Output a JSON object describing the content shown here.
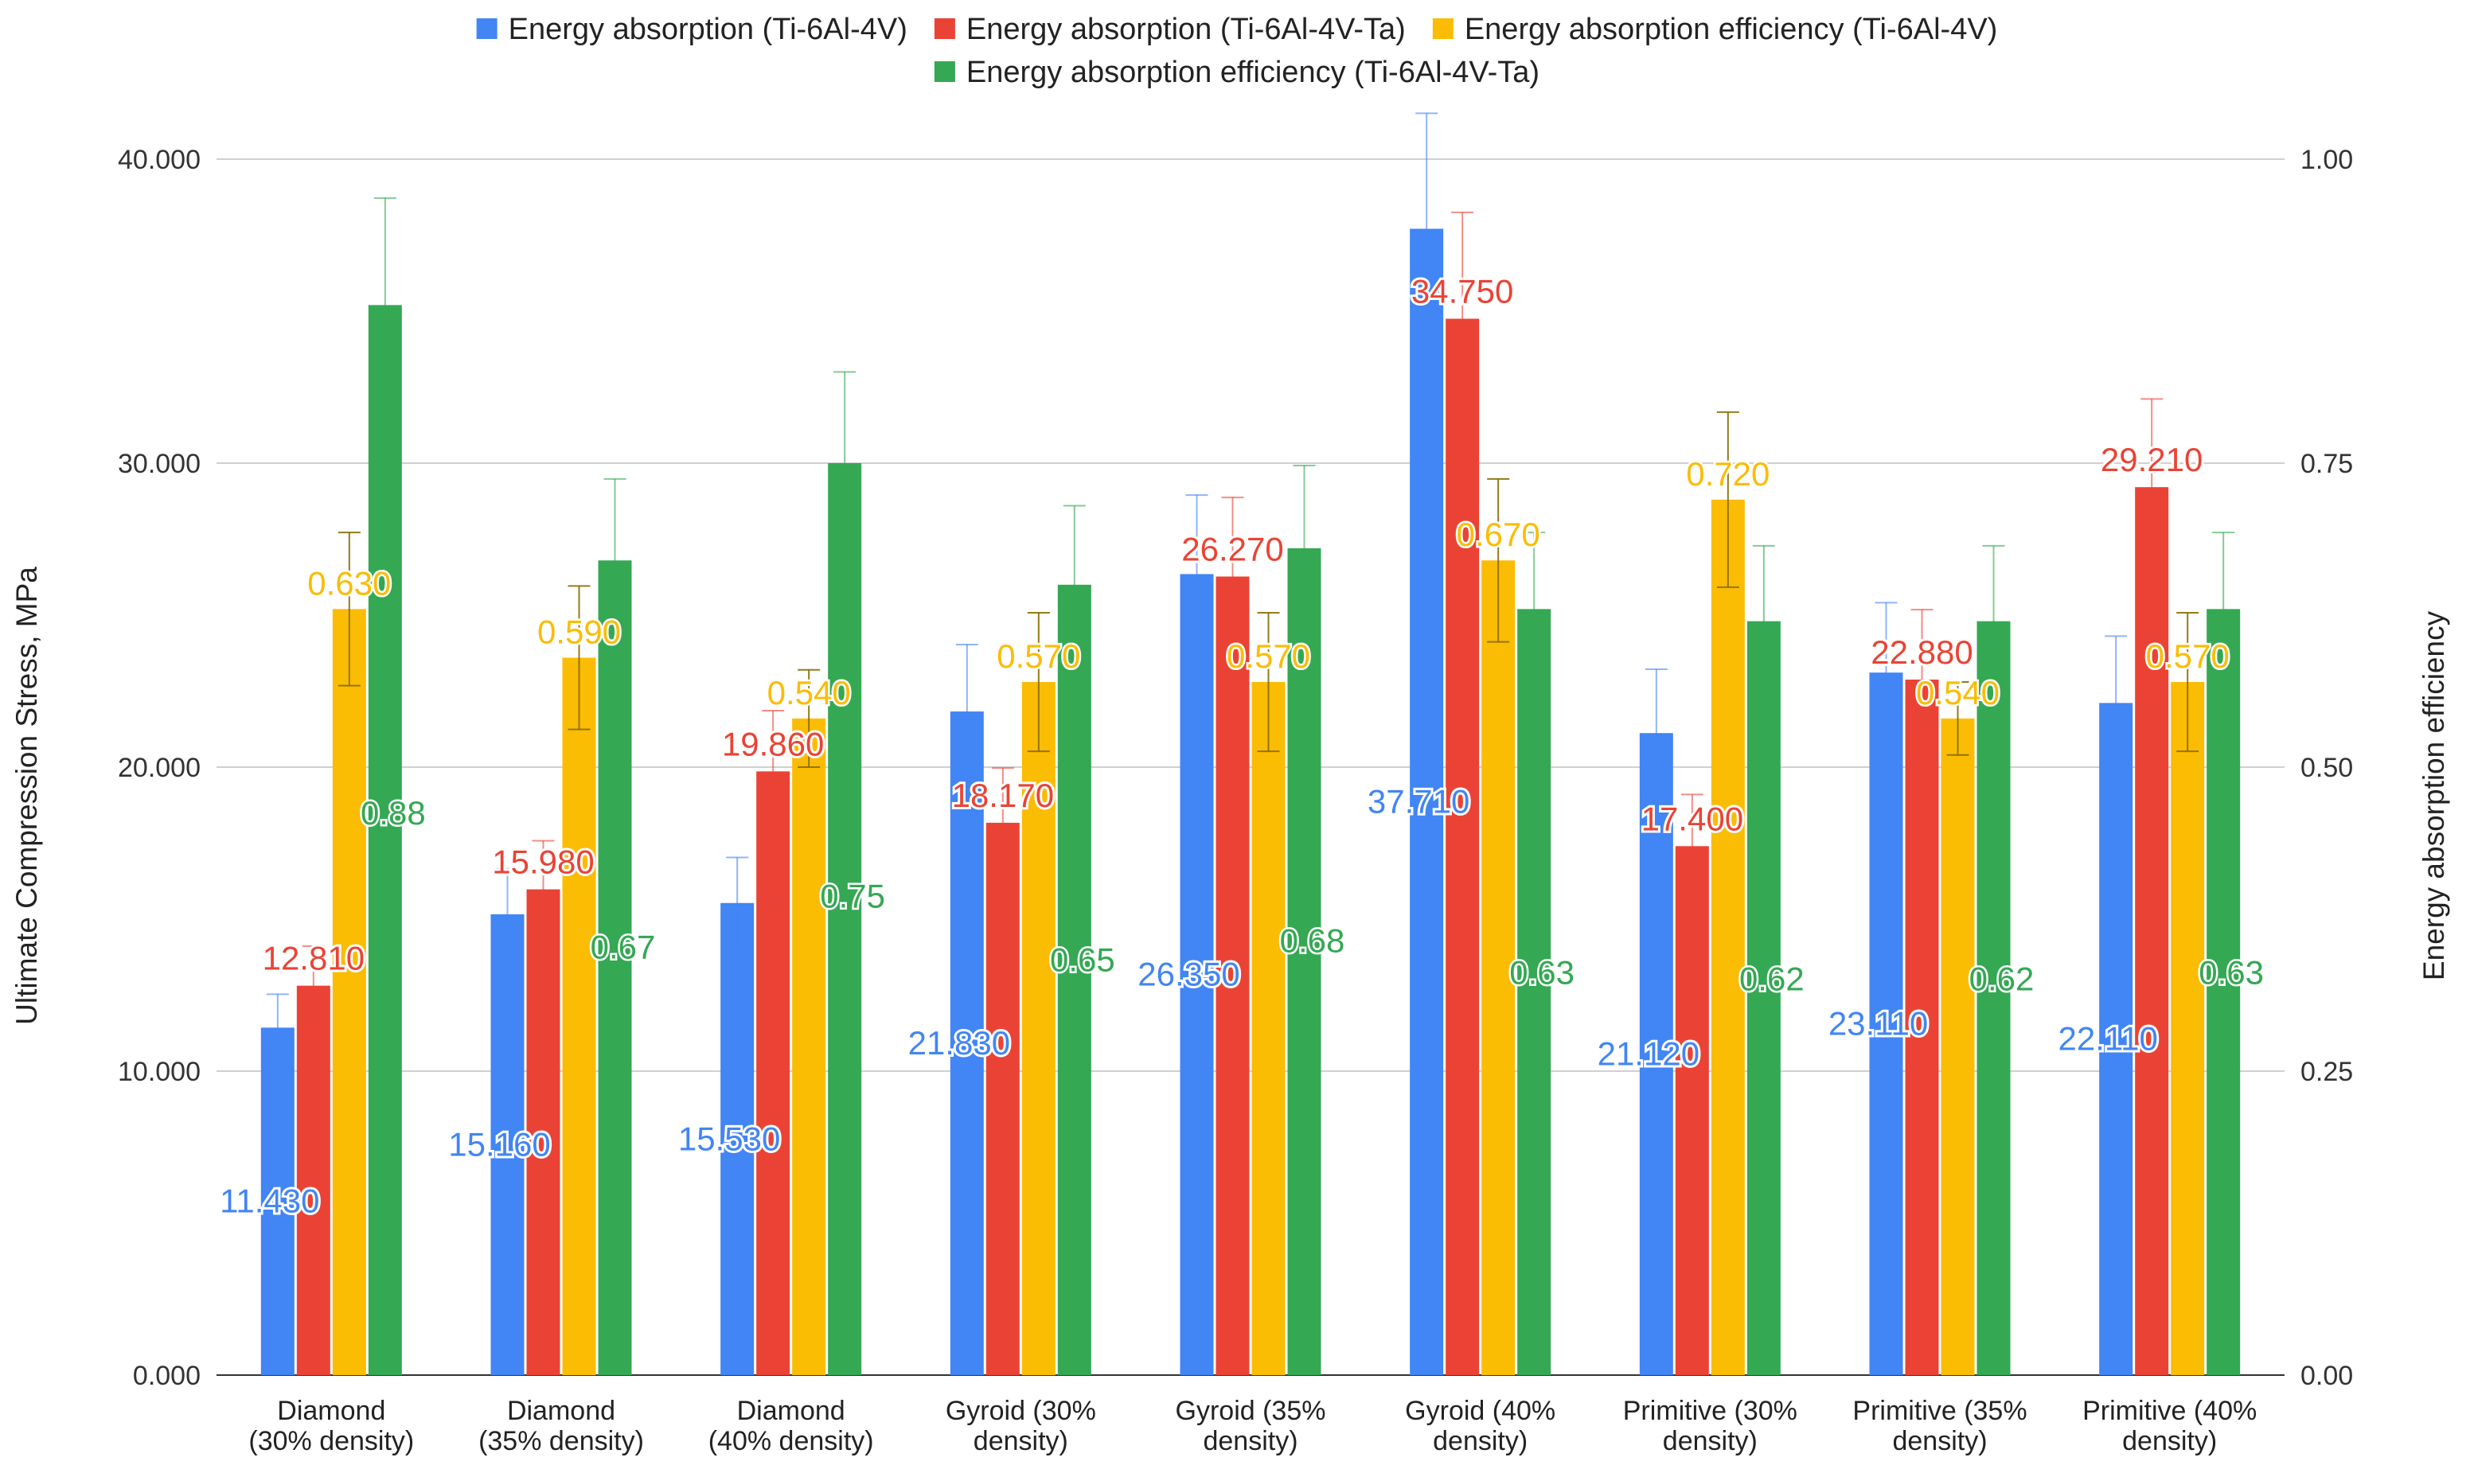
{
  "chart_data": {
    "type": "bar",
    "categories": [
      [
        "Diamond",
        "(30% density)"
      ],
      [
        "Diamond",
        "(35% density)"
      ],
      [
        "Diamond",
        "(40% density)"
      ],
      [
        "Gyroid (30%",
        "density)"
      ],
      [
        "Gyroid (35%",
        "density)"
      ],
      [
        "Gyroid (40%",
        "density)"
      ],
      [
        "Primitive (30%",
        "density)"
      ],
      [
        "Primitive (35%",
        "density)"
      ],
      [
        "Primitive (40%",
        "density)"
      ]
    ],
    "series": [
      {
        "name": "Energy absorption (Ti-6Al-4V)",
        "axis": "left",
        "color": "#4285F4",
        "values": [
          11.43,
          15.16,
          15.53,
          21.83,
          26.35,
          37.71,
          21.12,
          23.11,
          22.11
        ],
        "labels": [
          "11.430",
          "15.160",
          "15.530",
          "21.830",
          "26.350",
          "37.710",
          "21.120",
          "23.110",
          "22.110"
        ],
        "errors": [
          1.1,
          1.5,
          1.5,
          2.2,
          2.6,
          3.8,
          2.1,
          2.3,
          2.2
        ]
      },
      {
        "name": "Energy absorption (Ti-6Al-4V-Ta)",
        "axis": "left",
        "color": "#EA4335",
        "values": [
          12.81,
          15.98,
          19.86,
          18.17,
          26.27,
          34.75,
          17.4,
          22.88,
          29.21
        ],
        "labels": [
          "12.810",
          "15.980",
          "19.860",
          "18.170",
          "26.270",
          "34.750",
          "17.400",
          "22.880",
          "29.210"
        ],
        "errors": [
          1.3,
          1.6,
          2.0,
          1.8,
          2.6,
          3.5,
          1.7,
          2.3,
          2.9
        ]
      },
      {
        "name": "Energy absorption efficiency (Ti-6Al-4V)",
        "axis": "right",
        "color": "#FBBC04",
        "values": [
          0.63,
          0.59,
          0.54,
          0.57,
          0.57,
          0.67,
          0.72,
          0.54,
          0.57
        ],
        "labels": [
          "0.630",
          "0.590",
          "0.540",
          "0.570",
          "0.570",
          "0.670",
          "0.720",
          "0.540",
          "0.570"
        ],
        "errors": [
          0.063,
          0.059,
          0.04,
          0.057,
          0.057,
          0.067,
          0.072,
          0.03,
          0.057
        ]
      },
      {
        "name": "Energy absorption efficiency (Ti-6Al-4V-Ta)",
        "axis": "right",
        "color": "#34A853",
        "values": [
          0.88,
          0.67,
          0.75,
          0.65,
          0.68,
          0.63,
          0.62,
          0.62,
          0.63
        ],
        "labels": [
          "0.88",
          "0.67",
          "0.75",
          "0.65",
          "0.68",
          "0.63",
          "0.62",
          "0.62",
          "0.63"
        ],
        "errors": [
          0.088,
          0.067,
          0.075,
          0.065,
          0.068,
          0.063,
          0.062,
          0.062,
          0.063
        ]
      }
    ],
    "ylabel": "Ultimate Compression Stress, MPa",
    "y2label": "Energy absorption efficiency",
    "ylim": [
      0,
      40
    ],
    "y2lim": [
      0,
      1
    ],
    "yticks": [
      "0.000",
      "10.000",
      "20.000",
      "30.000",
      "40.000"
    ],
    "y2ticks": [
      "0.00",
      "0.25",
      "0.50",
      "0.75",
      "1.00"
    ],
    "grid": true,
    "legend": "top-center"
  }
}
